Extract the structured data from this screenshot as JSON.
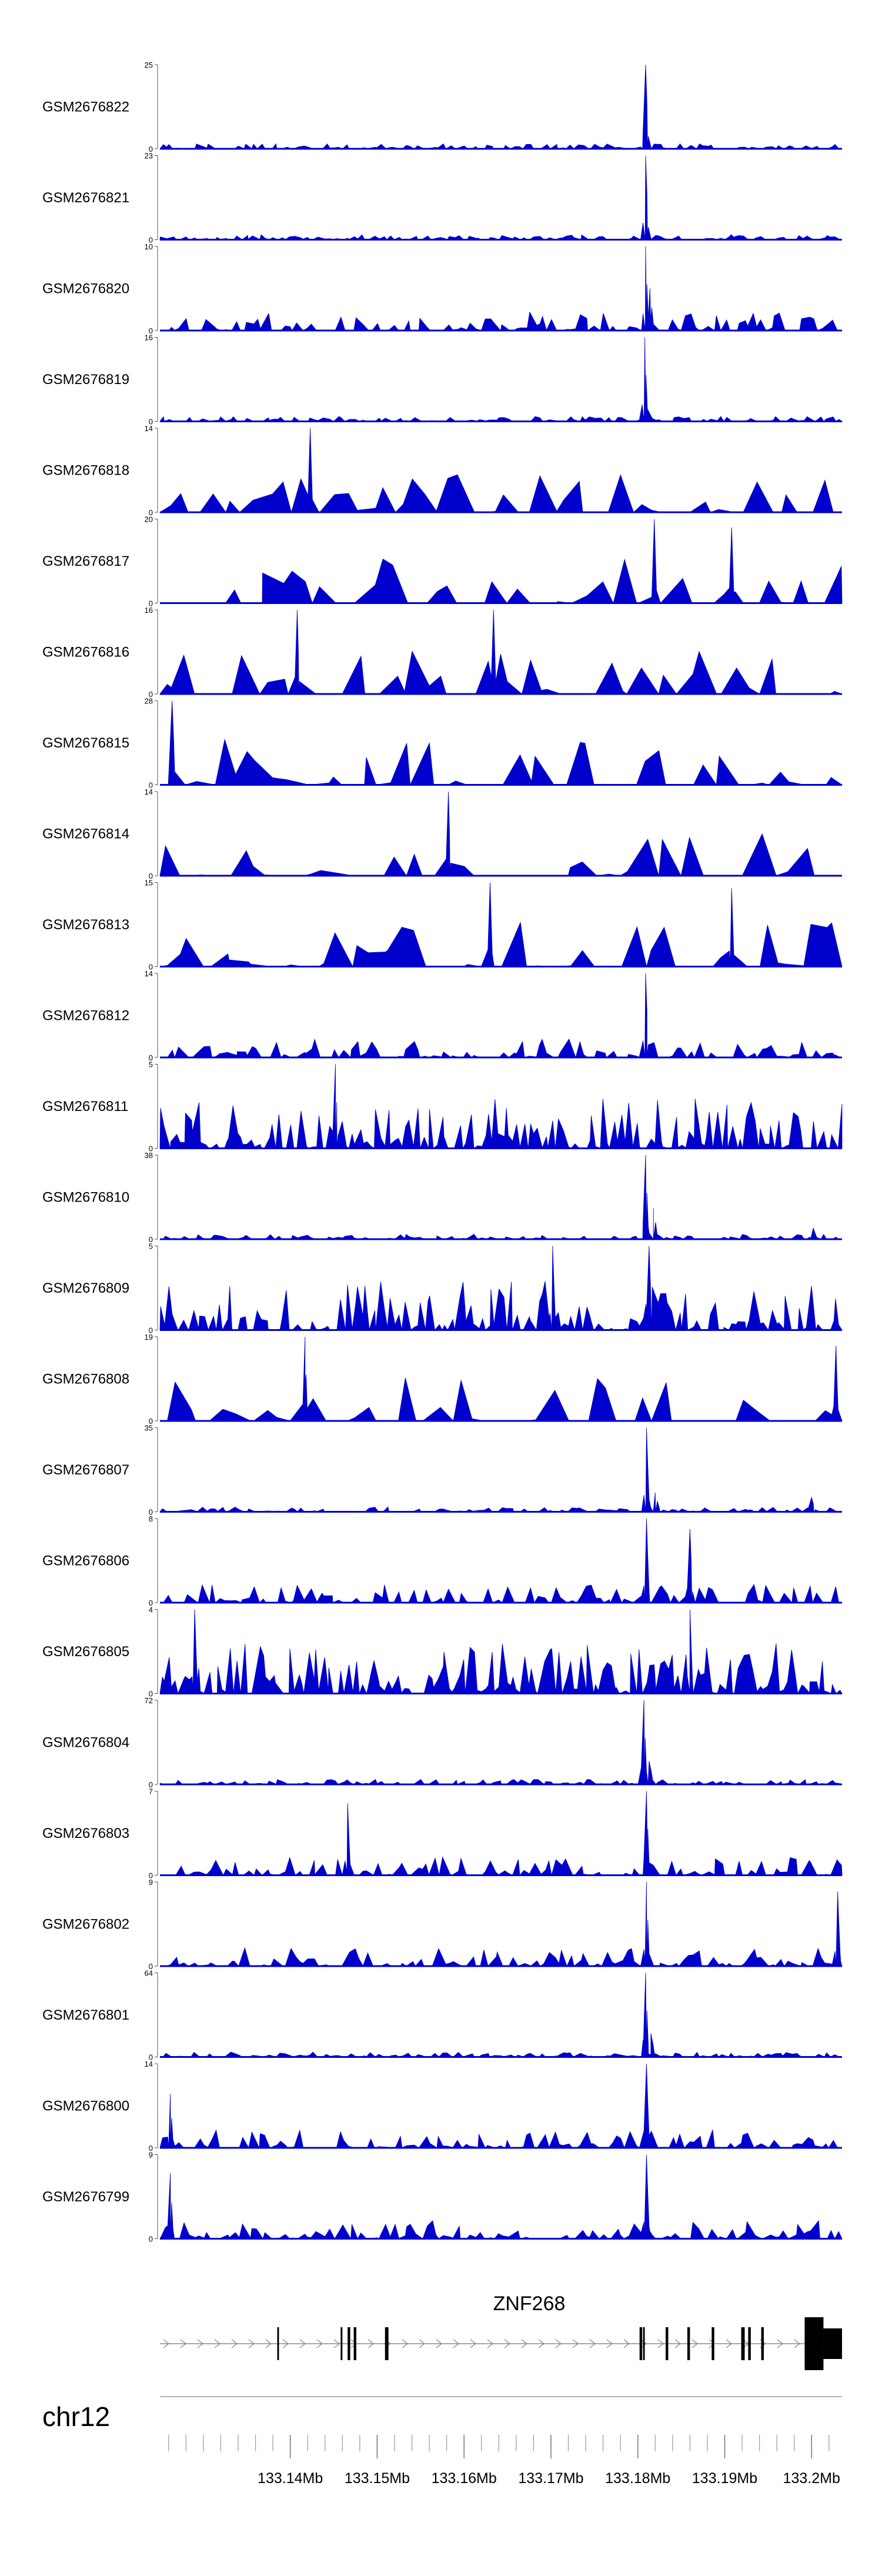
{
  "chart_data": {
    "type": "area",
    "chromosome": "chr12",
    "xlim": [
      133125000,
      133203500
    ],
    "axis_ticks": [
      "133.14Mb",
      "133.15Mb",
      "133.16Mb",
      "133.17Mb",
      "133.18Mb",
      "133.19Mb",
      "133.2Mb"
    ],
    "axis_tick_values": [
      133140000,
      133150000,
      133160000,
      133170000,
      133180000,
      133190000,
      133200000
    ],
    "colors": {
      "signal": "#0000cc",
      "gene": "#000000",
      "axis": "#555555"
    },
    "gene": {
      "name": "ZNF268",
      "strand": "+",
      "start": 133125000,
      "end": 133203500,
      "exons": [
        {
          "start": 133138500,
          "end": 133138700
        },
        {
          "start": 133145800,
          "end": 133146000
        },
        {
          "start": 133146600,
          "end": 133146900
        },
        {
          "start": 133147300,
          "end": 133147600
        },
        {
          "start": 133150900,
          "end": 133151300
        },
        {
          "start": 133180200,
          "end": 133180500
        },
        {
          "start": 133180600,
          "end": 133180800
        },
        {
          "start": 133183200,
          "end": 133183500
        },
        {
          "start": 133185700,
          "end": 133186000
        },
        {
          "start": 133188500,
          "end": 133188800
        },
        {
          "start": 133191900,
          "end": 133192300
        },
        {
          "start": 133192700,
          "end": 133193000
        },
        {
          "start": 133194200,
          "end": 133194500
        }
      ],
      "utr_end": {
        "start": 133199200,
        "end": 133203500
      }
    },
    "series": [
      {
        "name": "GSM2676822",
        "ymax": 25,
        "style": "sharp",
        "seed": 822,
        "peaks": [
          [
            133180900,
            25,
            300
          ]
        ]
      },
      {
        "name": "GSM2676821",
        "ymax": 23,
        "style": "sharp",
        "seed": 821,
        "peaks": [
          [
            133180900,
            23,
            300
          ]
        ]
      },
      {
        "name": "GSM2676820",
        "ymax": 10,
        "style": "medium",
        "seed": 820,
        "peaks": [
          [
            133180900,
            10,
            300
          ],
          [
            133181400,
            5,
            400
          ]
        ]
      },
      {
        "name": "GSM2676819",
        "ymax": 16,
        "style": "sharp",
        "seed": 819,
        "peaks": [
          [
            133180800,
            16,
            300
          ]
        ]
      },
      {
        "name": "GSM2676818",
        "ymax": 14,
        "style": "sparse",
        "seed": 818,
        "peaks": [
          [
            133142300,
            14,
            250
          ]
        ]
      },
      {
        "name": "GSM2676817",
        "ymax": 20,
        "style": "sparse",
        "seed": 817,
        "peaks": [
          [
            133181900,
            20,
            250
          ],
          [
            133190800,
            18,
            250
          ]
        ]
      },
      {
        "name": "GSM2676816",
        "ymax": 16,
        "style": "sparse",
        "seed": 816,
        "peaks": [
          [
            133140800,
            16,
            250
          ],
          [
            133163400,
            16,
            250
          ]
        ]
      },
      {
        "name": "GSM2676815",
        "ymax": 28,
        "style": "sparse",
        "seed": 815,
        "peaks": [
          [
            133126400,
            28,
            350
          ]
        ]
      },
      {
        "name": "GSM2676814",
        "ymax": 14,
        "style": "sparse",
        "seed": 814,
        "peaks": [
          [
            133158200,
            14,
            250
          ]
        ]
      },
      {
        "name": "GSM2676813",
        "ymax": 15,
        "style": "sparse",
        "seed": 813,
        "peaks": [
          [
            133163000,
            15,
            250
          ],
          [
            133190800,
            14,
            250
          ]
        ]
      },
      {
        "name": "GSM2676812",
        "ymax": 14,
        "style": "medium",
        "seed": 812,
        "peaks": [
          [
            133180900,
            14,
            300
          ]
        ]
      },
      {
        "name": "GSM2676811",
        "ymax": 5,
        "style": "dense",
        "seed": 811,
        "peaks": [
          [
            133145200,
            5,
            300
          ]
        ]
      },
      {
        "name": "GSM2676810",
        "ymax": 38,
        "style": "sharp",
        "seed": 810,
        "peaks": [
          [
            133180900,
            38,
            300
          ],
          [
            133181800,
            14,
            500
          ],
          [
            133200200,
            5,
            400
          ]
        ]
      },
      {
        "name": "GSM2676809",
        "ymax": 5,
        "style": "dense",
        "seed": 809,
        "peaks": [
          [
            133170200,
            5,
            300
          ],
          [
            133181300,
            5,
            300
          ]
        ]
      },
      {
        "name": "GSM2676808",
        "ymax": 19,
        "style": "sparse",
        "seed": 808,
        "peaks": [
          [
            133141700,
            19,
            250
          ],
          [
            133202800,
            17,
            250
          ]
        ]
      },
      {
        "name": "GSM2676807",
        "ymax": 35,
        "style": "sharp",
        "seed": 807,
        "peaks": [
          [
            133181000,
            35,
            300
          ],
          [
            133182000,
            8,
            500
          ],
          [
            133200000,
            6,
            400
          ]
        ]
      },
      {
        "name": "GSM2676806",
        "ymax": 8,
        "style": "medium",
        "seed": 806,
        "peaks": [
          [
            133181000,
            8,
            300
          ],
          [
            133186000,
            7,
            300
          ]
        ]
      },
      {
        "name": "GSM2676805",
        "ymax": 4,
        "style": "dense",
        "seed": 805,
        "peaks": [
          [
            133129000,
            4,
            300
          ],
          [
            133186000,
            4,
            300
          ]
        ]
      },
      {
        "name": "GSM2676804",
        "ymax": 72,
        "style": "sharp",
        "seed": 804,
        "peaks": [
          [
            133180700,
            72,
            300
          ],
          [
            133181300,
            20,
            500
          ]
        ]
      },
      {
        "name": "GSM2676803",
        "ymax": 7,
        "style": "medium",
        "seed": 803,
        "peaks": [
          [
            133181000,
            7,
            300
          ],
          [
            133146600,
            6,
            300
          ]
        ]
      },
      {
        "name": "GSM2676802",
        "ymax": 9,
        "style": "medium",
        "seed": 802,
        "peaks": [
          [
            133181000,
            9,
            300
          ],
          [
            133203000,
            8,
            300
          ]
        ]
      },
      {
        "name": "GSM2676801",
        "ymax": 64,
        "style": "sharp",
        "seed": 801,
        "peaks": [
          [
            133180900,
            64,
            300
          ],
          [
            133181500,
            18,
            500
          ]
        ]
      },
      {
        "name": "GSM2676800",
        "ymax": 14,
        "style": "medium",
        "seed": 800,
        "peaks": [
          [
            133181000,
            14,
            300
          ],
          [
            133126200,
            9,
            300
          ]
        ]
      },
      {
        "name": "GSM2676799",
        "ymax": 9,
        "style": "medium",
        "seed": 799,
        "peaks": [
          [
            133181000,
            9,
            300
          ],
          [
            133126200,
            7,
            300
          ]
        ]
      }
    ]
  }
}
